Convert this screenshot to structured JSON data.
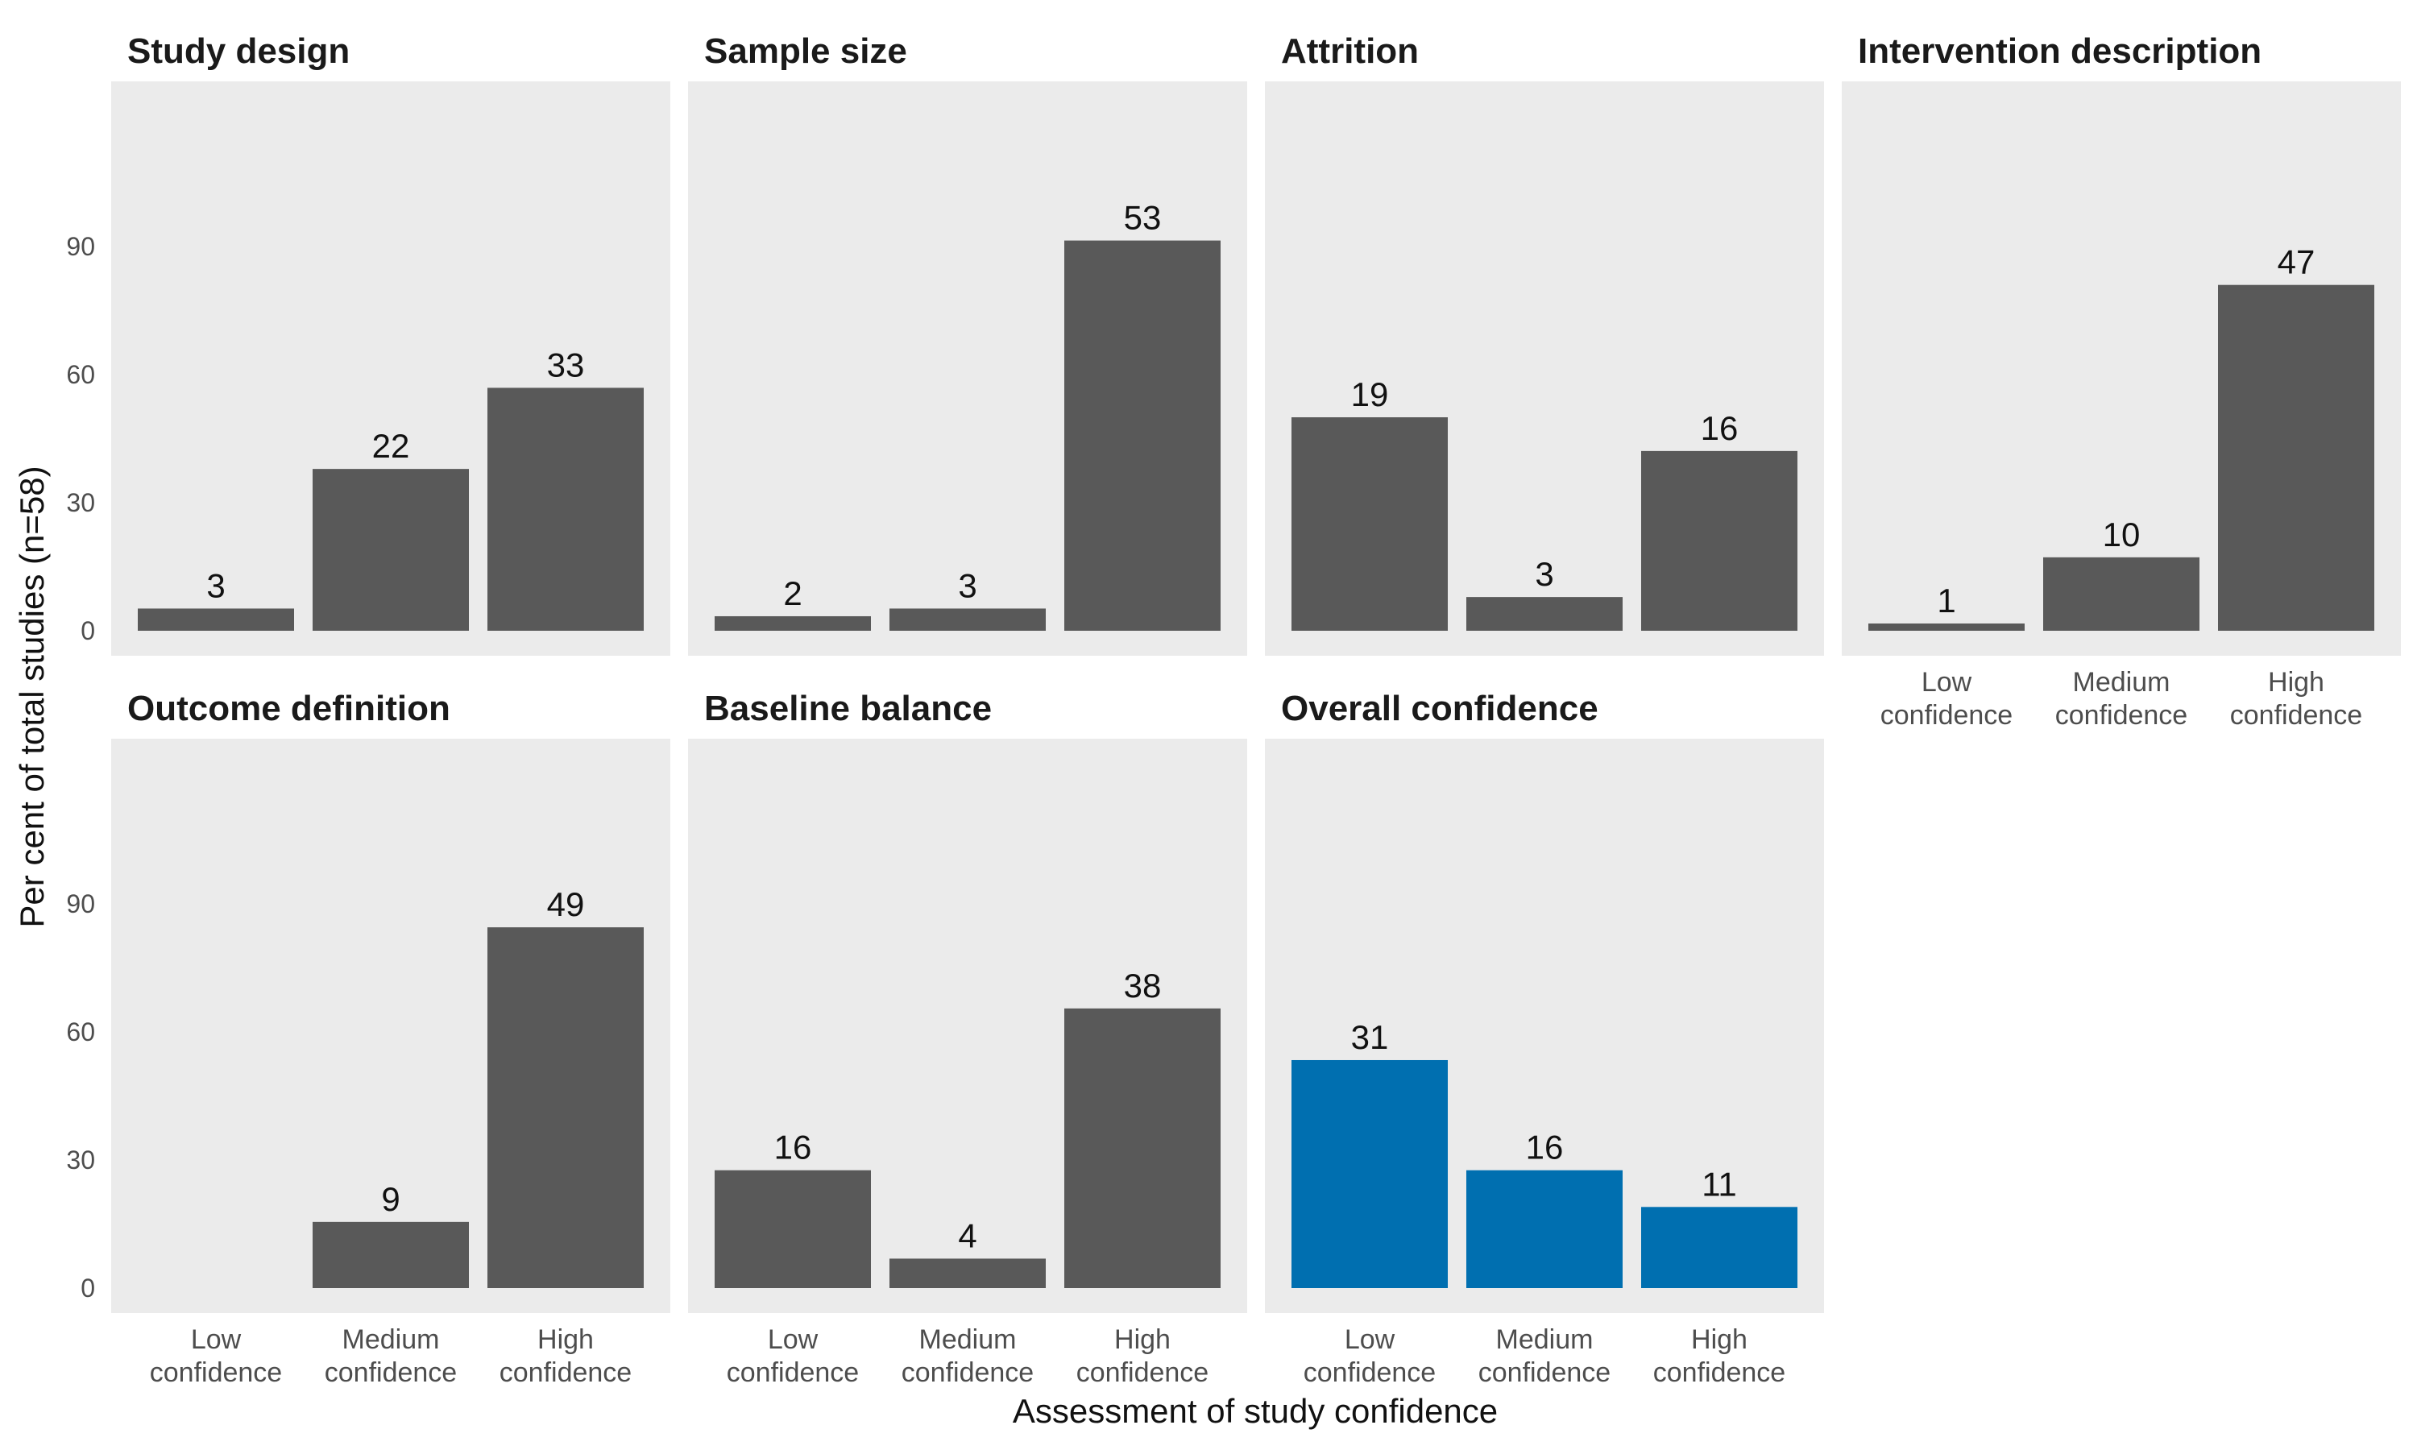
{
  "chart_data": {
    "type": "bar",
    "xlabel": "Assessment of study confidence",
    "ylabel": "Per cent of total studies (n=58)",
    "ylim": [
      0,
      115
    ],
    "yticks": [
      0,
      30,
      60,
      90
    ],
    "grid": false,
    "legend": "none",
    "categories": [
      [
        "Low",
        "confidence"
      ],
      [
        "Medium",
        "confidence"
      ],
      [
        "High",
        "confidence"
      ]
    ],
    "colors": {
      "default_bar": "#595959",
      "highlight_bar": "#006fb0",
      "panel_background": "#ebebeb"
    },
    "panels": [
      {
        "title": "Study design",
        "counts": [
          3,
          22,
          33
        ],
        "values": [
          5.2,
          37.9,
          56.9
        ],
        "labels": [
          "3",
          "22",
          "33"
        ],
        "highlight": false
      },
      {
        "title": "Sample size",
        "counts": [
          2,
          3,
          53
        ],
        "values": [
          3.4,
          5.2,
          91.4
        ],
        "labels": [
          "2",
          "3",
          "53"
        ],
        "highlight": false
      },
      {
        "title": "Attrition",
        "counts": [
          19,
          3,
          16
        ],
        "values": [
          50.0,
          7.9,
          42.1
        ],
        "labels": [
          "19",
          "3",
          "16"
        ],
        "highlight": false
      },
      {
        "title": "Intervention description",
        "counts": [
          1,
          10,
          47
        ],
        "values": [
          1.7,
          17.2,
          81.0
        ],
        "labels": [
          "1",
          "10",
          "47"
        ],
        "highlight": false
      },
      {
        "title": "Outcome definition",
        "counts": [
          0,
          9,
          49
        ],
        "values": [
          0,
          15.5,
          84.5
        ],
        "labels": [
          "",
          "9",
          "49"
        ],
        "highlight": false
      },
      {
        "title": "Baseline balance",
        "counts": [
          16,
          4,
          38
        ],
        "values": [
          27.6,
          6.9,
          65.5
        ],
        "labels": [
          "16",
          "4",
          "38"
        ],
        "highlight": false
      },
      {
        "title": "Overall confidence",
        "counts": [
          31,
          16,
          11
        ],
        "values": [
          53.4,
          27.6,
          19.0
        ],
        "labels": [
          "31",
          "16",
          "11"
        ],
        "highlight": true
      }
    ]
  }
}
